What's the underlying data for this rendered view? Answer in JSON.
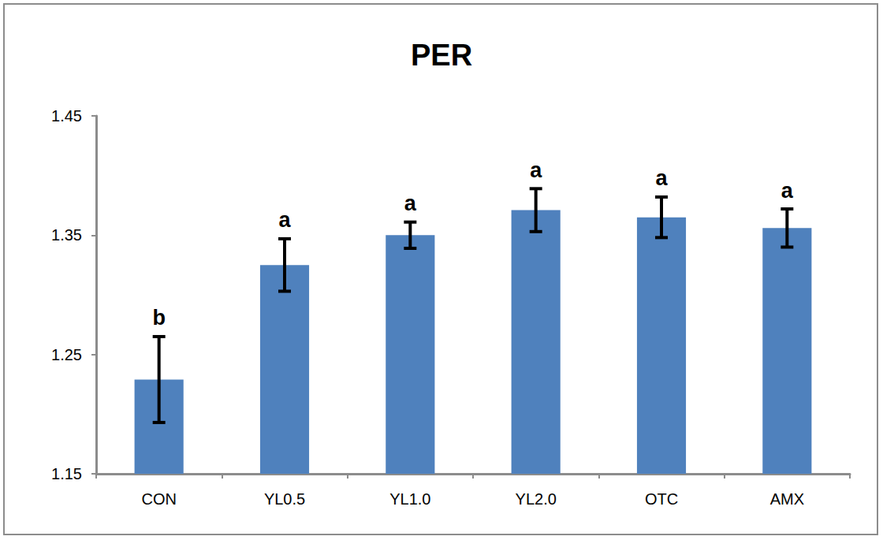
{
  "chart_data": {
    "type": "bar",
    "title": "PER",
    "categories": [
      "CON",
      "YL0.5",
      "YL1.0",
      "YL2.0",
      "OTC",
      "AMX"
    ],
    "values": [
      1.229,
      1.325,
      1.35,
      1.371,
      1.365,
      1.356
    ],
    "errors": [
      0.036,
      0.022,
      0.011,
      0.018,
      0.017,
      0.016
    ],
    "annotations": [
      "b",
      "a",
      "a",
      "a",
      "a",
      "a"
    ],
    "color": "#4f81bd",
    "ylim": [
      1.15,
      1.45
    ],
    "yticks": [
      1.15,
      1.25,
      1.35,
      1.45
    ],
    "grid": false
  }
}
